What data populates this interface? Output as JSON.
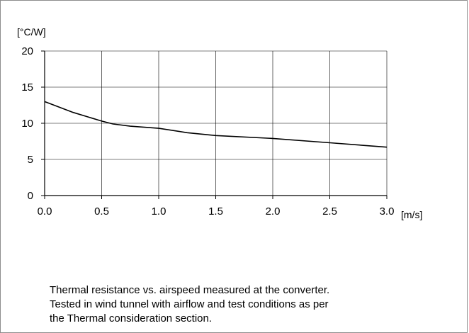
{
  "chart_data": {
    "type": "line",
    "ylabel": "[°C/W]",
    "xlabel": "[m/s]",
    "xlim": [
      0,
      3
    ],
    "ylim": [
      0,
      20
    ],
    "xticks": [
      "0.0",
      "0.5",
      "1.0",
      "1.5",
      "2.0",
      "2.5",
      "3.0"
    ],
    "yticks": [
      "0",
      "5",
      "10",
      "15",
      "20"
    ],
    "grid": true,
    "series": [
      {
        "x": [
          0,
          0.25,
          0.5,
          0.6,
          0.75,
          1.0,
          1.25,
          1.5,
          2.0,
          2.5,
          3.0
        ],
        "y": [
          13.0,
          11.5,
          10.3,
          9.9,
          9.6,
          9.3,
          8.7,
          8.3,
          7.9,
          7.3,
          6.7
        ],
        "color": "#000000"
      }
    ]
  },
  "caption": {
    "lines": [
      "Thermal resistance vs. airspeed measured at the converter.",
      "Tested in wind tunnel with airflow and test conditions as per",
      "the Thermal consideration section."
    ]
  }
}
